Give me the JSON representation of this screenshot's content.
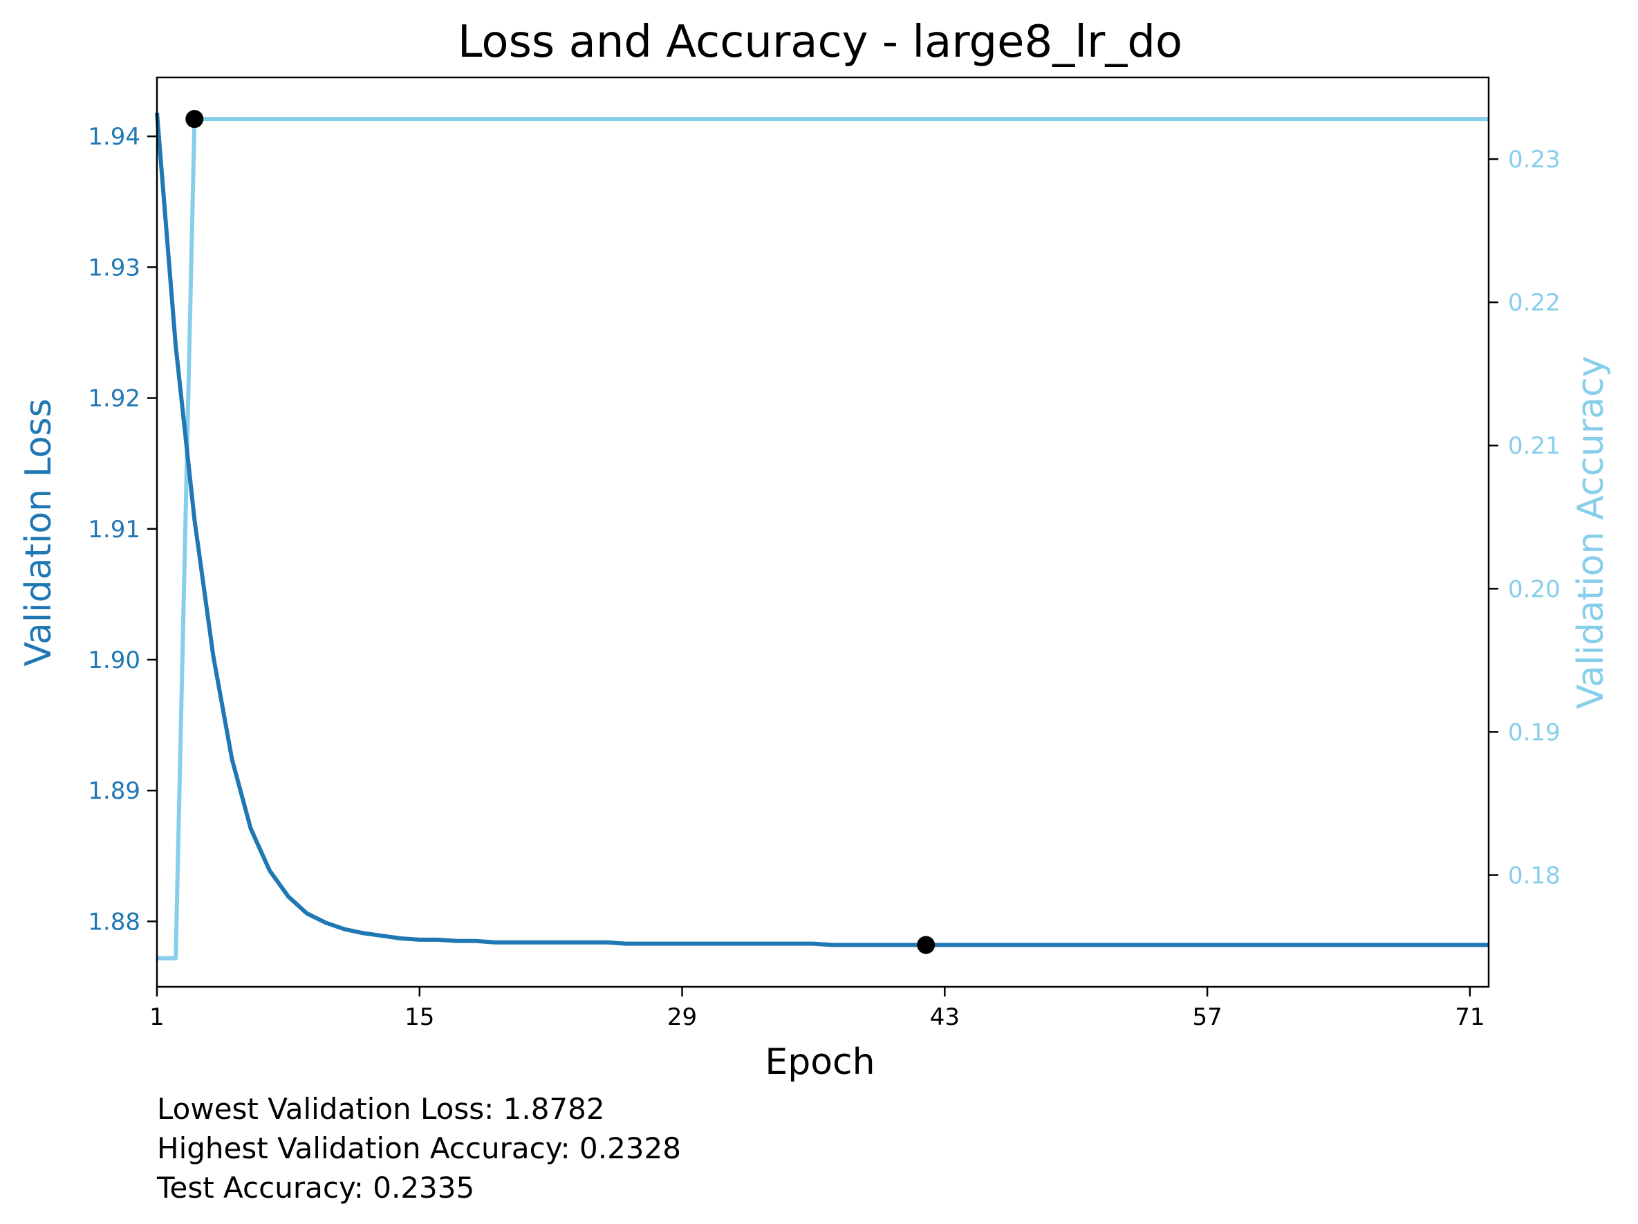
{
  "chart_data": {
    "type": "line",
    "title": "Loss and Accuracy - large8_lr_do",
    "xlabel": "Epoch",
    "ylabel_left": "Validation Loss",
    "ylabel_right": "Validation Accuracy",
    "xlim": [
      1,
      72
    ],
    "xticks": [
      1,
      15,
      29,
      43,
      57,
      71
    ],
    "ylim_left": [
      1.875,
      1.9445
    ],
    "yticks_left": [
      "1.88",
      "1.89",
      "1.90",
      "1.91",
      "1.92",
      "1.93",
      "1.94"
    ],
    "ylim_right": [
      0.1722,
      0.2357
    ],
    "yticks_right": [
      "0.18",
      "0.19",
      "0.20",
      "0.21",
      "0.22",
      "0.23"
    ],
    "grid": false,
    "colors": {
      "loss": "#1f77b4",
      "accuracy": "#87ceeb",
      "marker": "#000000"
    },
    "x": [
      1,
      2,
      3,
      4,
      5,
      6,
      7,
      8,
      9,
      10,
      11,
      12,
      13,
      14,
      15,
      16,
      17,
      18,
      19,
      20,
      21,
      22,
      23,
      24,
      25,
      26,
      27,
      28,
      29,
      30,
      31,
      32,
      33,
      34,
      35,
      36,
      37,
      38,
      39,
      40,
      41,
      42,
      43,
      44,
      45,
      46,
      47,
      48,
      49,
      50,
      51,
      52,
      53,
      54,
      55,
      56,
      57,
      58,
      59,
      60,
      61,
      62,
      63,
      64,
      65,
      66,
      67,
      68,
      69,
      70,
      71,
      72
    ],
    "series": [
      {
        "name": "Validation Loss",
        "axis": "left",
        "values": [
          1.9418,
          1.924,
          1.9107,
          1.9003,
          1.8924,
          1.8871,
          1.8839,
          1.8819,
          1.8806,
          1.8799,
          1.8794,
          1.8791,
          1.8789,
          1.8787,
          1.8786,
          1.8786,
          1.8785,
          1.8785,
          1.8784,
          1.8784,
          1.8784,
          1.8784,
          1.8784,
          1.8784,
          1.8784,
          1.8783,
          1.8783,
          1.8783,
          1.8783,
          1.8783,
          1.8783,
          1.8783,
          1.8783,
          1.8783,
          1.8783,
          1.8783,
          1.8782,
          1.8782,
          1.8782,
          1.8782,
          1.8782,
          1.8782,
          1.8782,
          1.8782,
          1.8782,
          1.8782,
          1.8782,
          1.8782,
          1.8782,
          1.8782,
          1.8782,
          1.8782,
          1.8782,
          1.8782,
          1.8782,
          1.8782,
          1.8782,
          1.8782,
          1.8782,
          1.8782,
          1.8782,
          1.8782,
          1.8782,
          1.8782,
          1.8782,
          1.8782,
          1.8782,
          1.8782,
          1.8782,
          1.8782,
          1.8782,
          1.8782
        ]
      },
      {
        "name": "Validation Accuracy",
        "axis": "right",
        "values": [
          0.1742,
          0.1742,
          0.2328,
          0.2328,
          0.2328,
          0.2328,
          0.2328,
          0.2328,
          0.2328,
          0.2328,
          0.2328,
          0.2328,
          0.2328,
          0.2328,
          0.2328,
          0.2328,
          0.2328,
          0.2328,
          0.2328,
          0.2328,
          0.2328,
          0.2328,
          0.2328,
          0.2328,
          0.2328,
          0.2328,
          0.2328,
          0.2328,
          0.2328,
          0.2328,
          0.2328,
          0.2328,
          0.2328,
          0.2328,
          0.2328,
          0.2328,
          0.2328,
          0.2328,
          0.2328,
          0.2328,
          0.2328,
          0.2328,
          0.2328,
          0.2328,
          0.2328,
          0.2328,
          0.2328,
          0.2328,
          0.2328,
          0.2328,
          0.2328,
          0.2328,
          0.2328,
          0.2328,
          0.2328,
          0.2328,
          0.2328,
          0.2328,
          0.2328,
          0.2328,
          0.2328,
          0.2328,
          0.2328,
          0.2328,
          0.2328,
          0.2328,
          0.2328,
          0.2328,
          0.2328,
          0.2328,
          0.2328,
          0.2328
        ]
      }
    ],
    "markers": [
      {
        "x": 42,
        "y": 1.8782,
        "axis": "left"
      },
      {
        "x": 3,
        "y": 0.2328,
        "axis": "right"
      }
    ]
  },
  "stats": {
    "lowest_loss": "Lowest Validation Loss: 1.8782",
    "highest_accuracy": "Highest Validation Accuracy: 0.2328",
    "test_accuracy": "Test Accuracy: 0.2335"
  }
}
